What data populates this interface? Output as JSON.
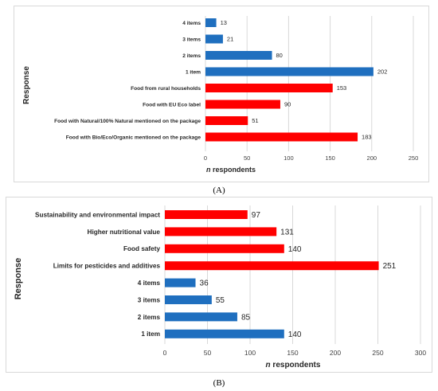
{
  "chart_data": [
    {
      "type": "bar",
      "orientation": "horizontal",
      "panel_label": "(A)",
      "categories": [
        "4 items",
        "3 items",
        "2 items",
        "1 item",
        "Food from rural households",
        "Food with EU Eco label",
        "Food with Natural/100% Natural mentioned on the package",
        "Food with Bio/Eco/Organic mentioned on the package"
      ],
      "values": [
        13,
        21,
        80,
        202,
        153,
        90,
        51,
        183
      ],
      "colors": [
        "#1f6fbf",
        "#1f6fbf",
        "#1f6fbf",
        "#1f6fbf",
        "#ff0000",
        "#ff0000",
        "#ff0000",
        "#ff0000"
      ],
      "xlabel_italic": "n",
      "xlabel_rest": " respondents",
      "ylabel": "Response",
      "xlim": [
        0,
        250
      ],
      "ticks": [
        "0",
        "50",
        "100",
        "150",
        "200",
        "250"
      ],
      "grid": true
    },
    {
      "type": "bar",
      "orientation": "horizontal",
      "panel_label": "(B)",
      "categories": [
        "Sustainability and environmental impact",
        "Higher nutritional value",
        "Food safety",
        "Limits for pesticides and additives",
        "4 items",
        "3 items",
        "2 items",
        "1 item"
      ],
      "values": [
        97,
        131,
        140,
        251,
        36,
        55,
        85,
        140
      ],
      "colors": [
        "#ff0000",
        "#ff0000",
        "#ff0000",
        "#ff0000",
        "#1f6fbf",
        "#1f6fbf",
        "#1f6fbf",
        "#1f6fbf"
      ],
      "xlabel_italic": "n",
      "xlabel_rest": " respondents",
      "ylabel": "Response",
      "xlim": [
        0,
        300
      ],
      "ticks": [
        "0",
        "50",
        "100",
        "150",
        "200",
        "250",
        "300"
      ],
      "grid": true
    }
  ]
}
